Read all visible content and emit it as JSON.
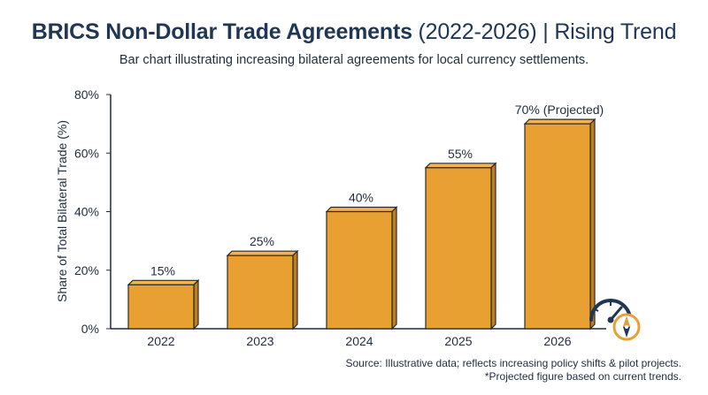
{
  "header": {
    "title_main": "BRICS Non-Dollar Trade Agreements",
    "title_rest": "(2022-2026) | Rising Trend",
    "subtitle": "Bar chart illustrating increasing bilateral agreements for local currency settlements."
  },
  "footer": {
    "source_line1": "Source: Illustrative data; reflects increasing policy shifts & pilot projects.",
    "source_line2": "*Projected figure based on current trends."
  },
  "icons": [
    "speedometer-icon",
    "compass-icon"
  ],
  "colors": {
    "bar": "#e8a033",
    "bar_side": "#c17d20",
    "bar_top": "#f0b552",
    "axis": "#1f2d3d",
    "title": "#1f3654",
    "badge_navy": "#1f3654"
  },
  "chart_data": {
    "type": "bar",
    "title": "BRICS Non-Dollar Trade Agreements (2022-2026) | Rising Trend",
    "subtitle": "Bar chart illustrating increasing bilateral agreements for local currency settlements.",
    "xlabel": "",
    "ylabel": "Share of Total Bilateral Trade (%)",
    "categories": [
      "2022",
      "2023",
      "2024",
      "2025",
      "2026"
    ],
    "values": [
      15,
      25,
      40,
      55,
      70
    ],
    "data_labels": [
      "15%",
      "25%",
      "40%",
      "55%",
      "70% (Projected)"
    ],
    "ylim": [
      0,
      80
    ],
    "y_ticks": [
      0,
      20,
      40,
      60,
      80
    ],
    "y_tick_labels": [
      "0%",
      "20%",
      "40%",
      "60%",
      "80%"
    ],
    "grid": false,
    "legend": "none"
  }
}
